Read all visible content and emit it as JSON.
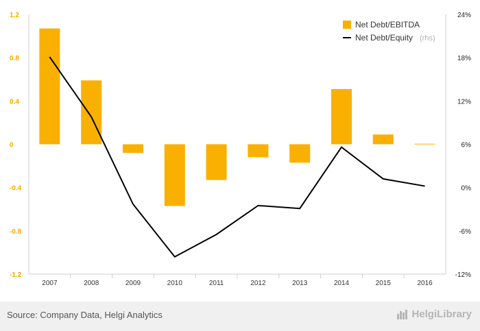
{
  "chart_data": {
    "type": "bar+line",
    "categories": [
      "2007",
      "2008",
      "2009",
      "2010",
      "2011",
      "2012",
      "2013",
      "2014",
      "2015",
      "2016"
    ],
    "series": [
      {
        "name": "Net Debt/EBITDA",
        "type": "bar",
        "axis": "left",
        "color": "#f9b000",
        "values": [
          1.07,
          0.59,
          -0.08,
          -0.57,
          -0.33,
          -0.12,
          -0.17,
          0.51,
          0.09,
          0.005
        ]
      },
      {
        "name": "Net Debt/Equity",
        "type": "line",
        "axis": "right",
        "color": "#000000",
        "values": [
          18.1,
          9.8,
          -2.3,
          -9.6,
          -6.5,
          -2.5,
          -2.9,
          5.6,
          1.2,
          0.2
        ]
      }
    ],
    "left_axis": {
      "ticks": [
        1.2,
        0.8,
        0.4,
        0,
        -0.4,
        -0.8,
        -1.2
      ],
      "tick_labels": [
        "1.2",
        "0.8",
        "0.4",
        "0",
        "-0.4",
        "-0.8",
        "-1.2"
      ],
      "ylim": [
        -1.2,
        1.2
      ]
    },
    "right_axis": {
      "ticks": [
        24,
        18,
        12,
        6,
        0,
        -6,
        -12
      ],
      "tick_labels": [
        "24%",
        "18%",
        "12%",
        "6%",
        "0%",
        "-6%",
        "-12%"
      ],
      "ylim": [
        -12,
        24
      ]
    },
    "legend": {
      "placement": "top-right",
      "items": [
        {
          "label": "Net Debt/EBITDA",
          "note": ""
        },
        {
          "label": "Net Debt/Equity",
          "note": "(rhs)"
        }
      ]
    },
    "grid": false
  },
  "footer": {
    "source": "Source: Company Data, Helgi Analytics",
    "brand": "HelgiLibrary"
  }
}
